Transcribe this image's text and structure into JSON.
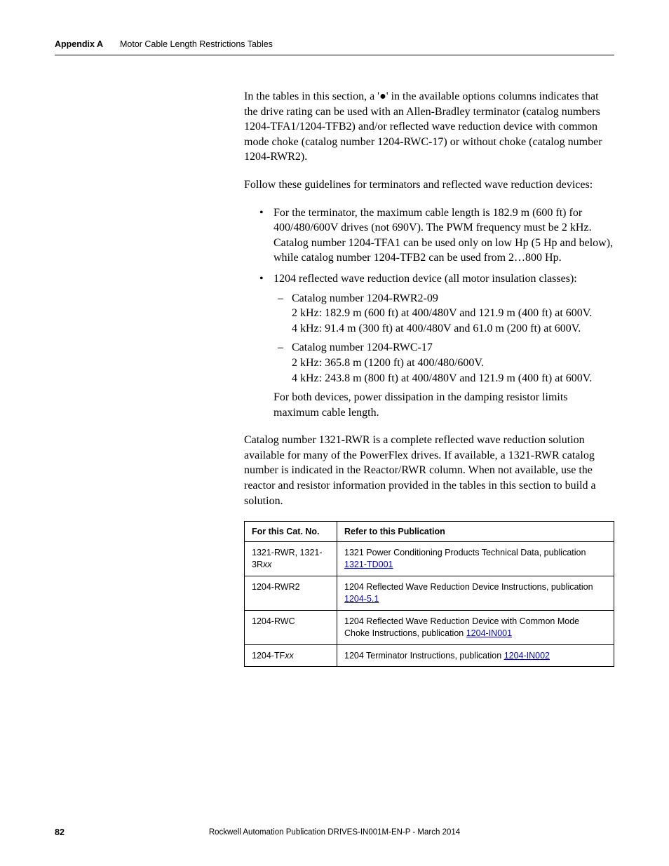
{
  "header": {
    "appendix": "Appendix A",
    "title": "Motor Cable Length Restrictions Tables"
  },
  "content": {
    "para1": "In the tables in this section, a '●' in the available options columns indicates that the drive rating can be used with an Allen-Bradley terminator (catalog numbers 1204-TFA1/1204-TFB2) and/or reflected wave reduction device with common mode choke (catalog number 1204-RWC-17) or without choke (catalog number 1204-RWR2).",
    "para2": "Follow these guidelines for terminators and reflected wave reduction devices:",
    "bullet1": "For the terminator, the maximum cable length is 182.9 m (600 ft) for 400/480/600V drives (not 690V). The PWM frequency must be 2 kHz. Catalog number 1204-TFA1 can be used only on low Hp (5 Hp and below), while catalog number 1204-TFB2 can be used from 2…800 Hp.",
    "bullet2": "1204 reflected wave reduction device (all motor insulation classes):",
    "dash1_line1": "Catalog number 1204-RWR2-09",
    "dash1_line2": "2 kHz: 182.9 m (600 ft) at 400/480V and 121.9 m (400 ft) at 600V.",
    "dash1_line3": "4 kHz: 91.4 m (300 ft) at 400/480V and 61.0 m (200 ft) at 600V.",
    "dash2_line1": "Catalog number 1204-RWC-17",
    "dash2_line2": "2 kHz: 365.8 m (1200 ft) at 400/480/600V.",
    "dash2_line3": "4 kHz: 243.8 m (800 ft) at 400/480V and 121.9 m (400 ft) at 600V.",
    "dash_note": "For both devices, power dissipation in the damping resistor limits maximum cable length.",
    "para3": "Catalog number 1321-RWR is a complete reflected wave reduction solution available for many of the PowerFlex drives. If available, a 1321-RWR catalog number is indicated in the Reactor/RWR column. When not available, use the reactor and resistor information provided in the tables in this section to build a solution."
  },
  "table": {
    "col1_header": "For this Cat. No.",
    "col2_header": "Refer to this Publication",
    "rows": [
      {
        "cat": "1321-RWR, 1321-3R",
        "cat_italic": "xx",
        "desc_pre": "1321 Power Conditioning Products Technical Data, publication ",
        "link": "1321-TD001",
        "desc_post": ""
      },
      {
        "cat": "1204-RWR2",
        "cat_italic": "",
        "desc_pre": "1204 Reflected Wave Reduction Device Instructions, publication ",
        "link": "1204-5.1",
        "desc_post": ""
      },
      {
        "cat": "1204-RWC",
        "cat_italic": "",
        "desc_pre": "1204 Reflected Wave Reduction Device with Common Mode Choke Instructions, publication ",
        "link": "1204-IN001",
        "desc_post": ""
      },
      {
        "cat": "1204-TF",
        "cat_italic": "xx",
        "desc_pre": "1204 Terminator Instructions, publication ",
        "link": "1204-IN002",
        "desc_post": ""
      }
    ]
  },
  "footer": {
    "page": "82",
    "pub": "Rockwell Automation Publication DRIVES-IN001M-EN-P - March 2014"
  }
}
